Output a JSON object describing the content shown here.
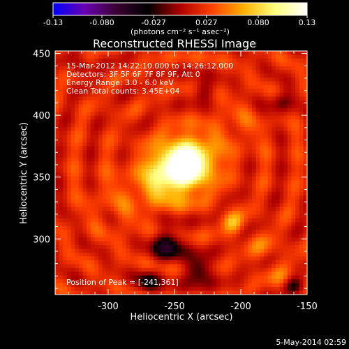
{
  "chart_data": {
    "type": "heatmap",
    "title": "Reconstructed RHESSI Image",
    "xlabel": "Heliocentric X (arcsec)",
    "ylabel": "Heliocentric Y (arcsec)",
    "xlim": [
      -340,
      -150
    ],
    "ylim": [
      255,
      452
    ],
    "xticks": [
      -300,
      -250,
      -200,
      -150
    ],
    "yticks": [
      300,
      350,
      400,
      450
    ],
    "xtick_labels": [
      "-300",
      "-250",
      "-200",
      "-150"
    ],
    "ytick_labels": [
      "300",
      "350",
      "400",
      "450"
    ],
    "colorbar": {
      "min": -0.13,
      "max": 0.13,
      "ticks": [
        -0.13,
        -0.08,
        -0.027,
        0.027,
        0.08,
        0.13
      ],
      "tick_labels": [
        "-0.13",
        "-0.080",
        "-0.027",
        "0.027",
        "0.080",
        "0.13"
      ],
      "unit_label": "(photons cm⁻² s⁻¹ asec⁻²)",
      "colors": [
        "#0000ff",
        "#6a00b0",
        "#3a0030",
        "#000000",
        "#b00000",
        "#ff4000",
        "#ffb000",
        "#ffff80",
        "#ffffff"
      ]
    },
    "info_lines": [
      "15-Mar-2012 14:22:10.000 to 14:26:12.000",
      "Detectors: 3F 5F 6F 7F 8F 9F, Att 0",
      "Energy Range: 3.0 - 6.0 keV",
      "Clean     Total counts: 3.45E+04"
    ],
    "peak_text": "Position of Peak = [-241,361]",
    "peak": [
      -241,
      361
    ],
    "sources": [
      {
        "x": -241,
        "y": 361,
        "amp": 0.13,
        "sigma": 14
      },
      {
        "x": -258,
        "y": 348,
        "amp": 0.05,
        "sigma": 14
      },
      {
        "x": -206,
        "y": 313,
        "amp": 0.045,
        "sigma": 6
      },
      {
        "x": -183,
        "y": 292,
        "amp": 0.02,
        "sigma": 8
      },
      {
        "x": -170,
        "y": 267,
        "amp": 0.02,
        "sigma": 7
      },
      {
        "x": -290,
        "y": 330,
        "amp": 0.015,
        "sigma": 18
      },
      {
        "x": -205,
        "y": 390,
        "amp": 0.015,
        "sigma": 15
      }
    ],
    "background": 0.02,
    "negative_regions": [
      {
        "x": -255,
        "y": 295,
        "amp": -0.07,
        "sigma": 8
      },
      {
        "x": -232,
        "y": 275,
        "amp": -0.06,
        "sigma": 7
      },
      {
        "x": -270,
        "y": 265,
        "amp": -0.05,
        "sigma": 6
      },
      {
        "x": -160,
        "y": 262,
        "amp": -0.04,
        "sigma": 5
      },
      {
        "x": -170,
        "y": 410,
        "amp": -0.04,
        "sigma": 6
      },
      {
        "x": -228,
        "y": 420,
        "amp": -0.035,
        "sigma": 6
      },
      {
        "x": -320,
        "y": 438,
        "amp": -0.03,
        "sigma": 5
      }
    ]
  },
  "footer_date": "5-May-2014 02:59"
}
